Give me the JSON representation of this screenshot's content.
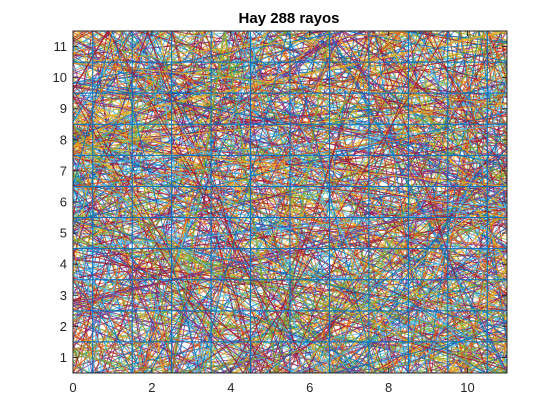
{
  "chart_data": {
    "type": "line",
    "title": "Hay 288 rayos",
    "xlabel": "",
    "ylabel": "",
    "xlim": [
      0,
      11
    ],
    "ylim": [
      0.5,
      11.5
    ],
    "xticks": [
      0,
      2,
      4,
      6,
      8,
      10
    ],
    "xtick_labels": [
      "0",
      "2",
      "4",
      "6",
      "8",
      "10"
    ],
    "yticks": [
      1,
      2,
      3,
      4,
      5,
      6,
      7,
      8,
      9,
      10,
      11
    ],
    "ytick_labels": [
      "1",
      "2",
      "3",
      "4",
      "5",
      "6",
      "7",
      "8",
      "9",
      "10",
      "11"
    ],
    "grid_x": [
      0,
      0.5,
      1.5,
      2.5,
      3.5,
      4.5,
      5.5,
      6.5,
      7.5,
      8.5,
      9.5,
      10.5,
      11
    ],
    "grid_y": [
      0.5,
      1.5,
      2.5,
      3.5,
      4.5,
      5.5,
      6.5,
      7.5,
      8.5,
      9.5,
      10.5,
      11.5
    ],
    "ray_count": 288,
    "series_colors": [
      "#0072bd",
      "#d95319",
      "#edb120",
      "#7e2f8e",
      "#77ac30",
      "#4dbeee",
      "#a2142f"
    ],
    "grid_color": "#0072bd",
    "axis_color": "#262626"
  }
}
